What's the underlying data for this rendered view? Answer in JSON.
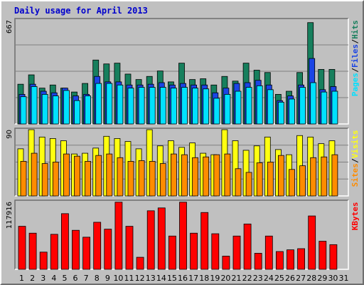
{
  "colors": {
    "pages": "#00e1ff",
    "files": "#1b45e5",
    "hits": "#177f5d",
    "visits": "#ffff10",
    "sites": "#ff8c00",
    "kbytes": "#ff0000",
    "title": "#0000cc",
    "weekend_label": "#00805f",
    "grid": "#808080",
    "background": "#c0c0c0"
  },
  "chart_data": {
    "type": "bar",
    "title": "Daily usage for April 2013",
    "categories": [
      "1",
      "2",
      "3",
      "4",
      "5",
      "6",
      "7",
      "8",
      "9",
      "10",
      "11",
      "12",
      "13",
      "14",
      "15",
      "16",
      "17",
      "18",
      "19",
      "20",
      "21",
      "22",
      "23",
      "24",
      "25",
      "26",
      "27",
      "28",
      "29",
      "30",
      "31"
    ],
    "weekend_days": [
      "6",
      "7",
      "13",
      "14",
      "20",
      "21",
      "27",
      "28"
    ],
    "panels": [
      {
        "name": "hits-files-pages",
        "max_label": "667",
        "ylim": [
          0,
          667
        ],
        "grid": true,
        "side_labels": [
          "Pages",
          "/",
          "Files",
          "/",
          "Hits"
        ],
        "series": [
          {
            "name": "Hits",
            "values": [
              255,
              315,
              230,
              250,
              230,
              205,
              260,
              410,
              385,
              390,
              320,
              285,
              305,
              340,
              270,
              390,
              285,
              290,
              250,
              305,
              275,
              390,
              345,
              330,
              190,
              210,
              330,
              650,
              350,
              350,
              0
            ]
          },
          {
            "name": "Files",
            "values": [
              190,
              255,
              210,
              200,
              230,
              180,
              190,
              305,
              270,
              270,
              250,
              250,
              255,
              265,
              250,
              260,
              250,
              250,
              200,
              230,
              260,
              265,
              280,
              250,
              150,
              180,
              250,
              420,
              220,
              240,
              0
            ]
          },
          {
            "name": "Pages",
            "values": [
              175,
              240,
              190,
              180,
              215,
              150,
              180,
              260,
              260,
              250,
              230,
              235,
              235,
              235,
              230,
              235,
              230,
              225,
              165,
              190,
              210,
              235,
              245,
              220,
              140,
              160,
              235,
              265,
              205,
              210,
              0
            ]
          }
        ]
      },
      {
        "name": "visits-sites",
        "max_label": "90",
        "ylim": [
          0,
          90
        ],
        "grid": true,
        "side_labels": [
          "Sites",
          "/",
          "Visits"
        ],
        "series": [
          {
            "name": "Visits",
            "values": [
              64,
              90,
              80,
              78,
              75,
              57,
              58,
              65,
              81,
              78,
              74,
              64,
              90,
              68,
              75,
              66,
              72,
              58,
              56,
              90,
              75,
              62,
              68,
              80,
              63,
              56,
              82,
              80,
              71,
              75,
              0
            ]
          },
          {
            "name": "Sites",
            "values": [
              47,
              58,
              44,
              46,
              57,
              54,
              47,
              55,
              57,
              52,
              47,
              48,
              47,
              44,
              57,
              56,
              52,
              53,
              56,
              57,
              37,
              32,
              45,
              46,
              55,
              36,
              41,
              52,
              53,
              56,
              0
            ]
          }
        ]
      },
      {
        "name": "kbytes",
        "max_label": "117916",
        "ylim": [
          0,
          117916
        ],
        "grid": false,
        "side_labels": [
          "KBytes"
        ],
        "series": [
          {
            "name": "KBytes",
            "values": [
              75000,
              63000,
              30000,
              61000,
              97000,
              68000,
              56000,
              82000,
              70000,
              117000,
              75000,
              21000,
              102000,
              107000,
              58000,
              117000,
              63000,
              99000,
              62000,
              23000,
              58000,
              79000,
              28000,
              58000,
              31000,
              34000,
              36000,
              93000,
              49000,
              43000,
              0
            ]
          }
        ]
      }
    ]
  }
}
